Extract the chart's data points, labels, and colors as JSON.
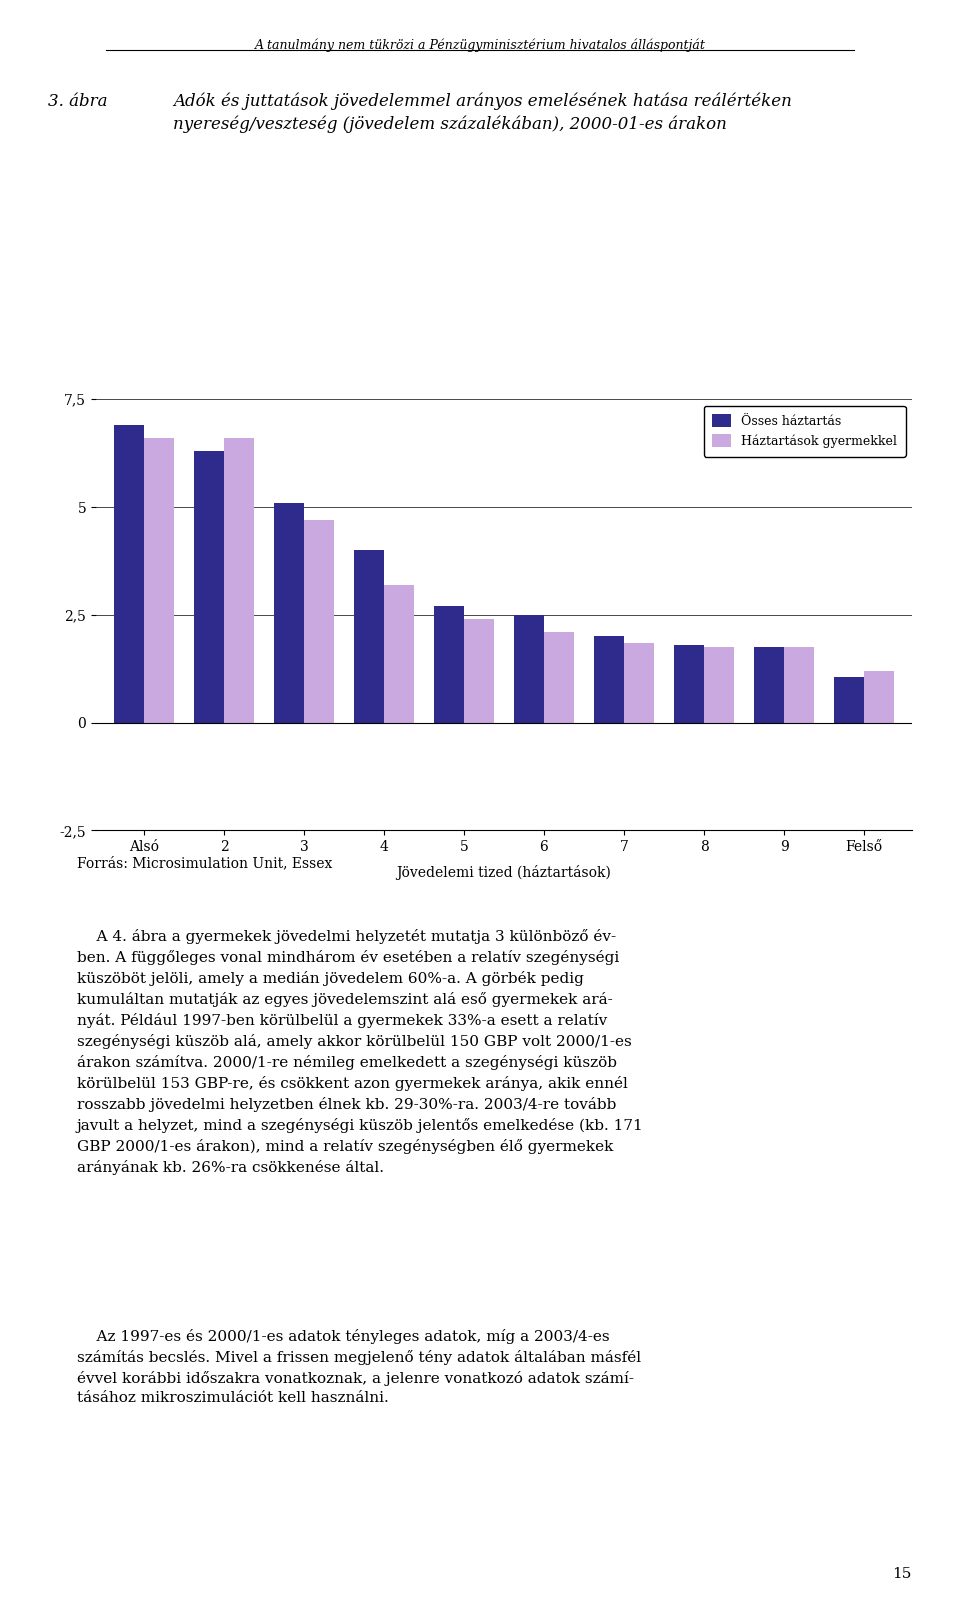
{
  "title_header": "A tanulmány nem tükrözi a Pénzügyminisztérium hivatalos álláspontját",
  "figure_label": "3. ábra",
  "figure_title_line1": "Adók és juttatások jövedelemmel arányos emelésének hatása reálértéken",
  "figure_title_line2": "nyereség/veszteség (jövedelem százalékában), 2000-01-es árakon",
  "categories": [
    "Alsó",
    "2",
    "3",
    "4",
    "5",
    "6",
    "7",
    "8",
    "9",
    "Felső"
  ],
  "xlabel": "Jövedelemi tized (háztartások)",
  "ylim": [
    -2.5,
    7.5
  ],
  "yticks": [
    -2.5,
    0,
    2.5,
    5,
    7.5
  ],
  "ytick_labels": [
    "-2,5",
    "0",
    "2,5",
    "5",
    "7,5"
  ],
  "series1_label": "Össes háztartás",
  "series2_label": "Háztartások gyermekkel",
  "series1_color": "#2E2B8C",
  "series2_color": "#C9A9E0",
  "series1_values": [
    6.9,
    6.3,
    5.1,
    4.0,
    2.7,
    2.5,
    2.0,
    1.8,
    1.75,
    1.05
  ],
  "series2_values": [
    6.6,
    6.6,
    4.7,
    3.2,
    2.4,
    2.1,
    1.85,
    1.75,
    1.75,
    1.2
  ],
  "source_text": "Forrás: Microsimulation Unit, Essex",
  "para1_line1": "    A 4. ábra a gyermekek jövedelmi helyzetét mutatja 3 különböző év-",
  "para1_line2": "ben. A függőleges vonal mindhárom év esetében a relatív szegénységi",
  "para1_line3": "küszöböt jelöli, amely a medián jövedelem 60%-a. A görbék pedig",
  "para1_line4": "kumuláltan mutatják az egyes jövedelemszint alá eső gyermekek ará-",
  "para1_line5": "nyát. Például 1997-ben körülbelül a gyermekek 33%-a esett a relatív",
  "para1_line6": "szegénységi küszöb alá, amely akkor körülbelül 150 GBP volt 2000/1-es",
  "para1_line7": "árakon számítva. 2000/1-re némileg emelkedett a szegénységi küszöb",
  "para1_line8": "körülbelül 153 GBP-re, és csökkent azon gyermekek aránya, akik ennél",
  "para1_line9": "rosszabb jövedelmi helyzetben élnek kb. 29-30%-ra. 2003/4-re tovább",
  "para1_line10": "javult a helyzet, mind a szegénységi küszöb jelentős emelkedése (kb. 171",
  "para1_line11": "GBP 2000/1-es árakon), mind a relatív szegénységben élő gyermekek",
  "para1_line12": "arányának kb. 26%-ra csökkenése által.",
  "para2_line1": "    Az 1997-es és 2000/1-es adatok tényleges adatok, míg a 2003/4-es",
  "para2_line2": "számítás becslés. Mivel a frissen megjelenő tény adatok általában másfél",
  "para2_line3": "évvel korábbi időszakra vonatkoznak, a jelenre vonatkozó adatok számí-",
  "para2_line4": "tásához mikroszimulációt kell használni.",
  "page_number": "15",
  "background_color": "#FFFFFF",
  "bar_width": 0.38
}
